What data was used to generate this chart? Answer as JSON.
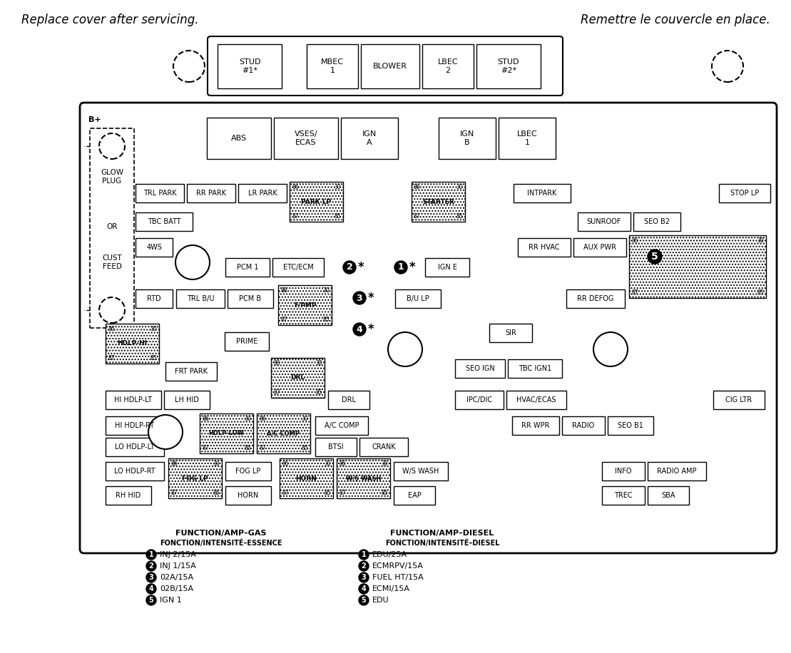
{
  "title_left": "Replace cover after servicing.",
  "title_right": "Remettre le couvercle en place.",
  "bg_color": "#ffffff",
  "legend_gas_title": "FUNCTION/AMP–GAS",
  "legend_gas_subtitle": "FONCTION/INTENSITÉ–ESSENCE",
  "legend_diesel_title": "FUNCTION/AMP–DIESEL",
  "legend_diesel_subtitle": "FONCTION/INTENSITÉ–DIESEL",
  "legend_gas_items": [
    {
      "num": "1",
      "text": "INJ 2/15A"
    },
    {
      "num": "2",
      "text": "INJ 1/15A"
    },
    {
      "num": "3",
      "text": "02A/15A"
    },
    {
      "num": "4",
      "text": "02B/15A"
    },
    {
      "num": "5",
      "text": "IGN 1"
    }
  ],
  "legend_diesel_items": [
    {
      "num": "1",
      "text": "EDU/25A"
    },
    {
      "num": "2",
      "text": "ECMRPV/15A"
    },
    {
      "num": "3",
      "text": "FUEL HT/15A"
    },
    {
      "num": "4",
      "text": "ECMI/15A"
    },
    {
      "num": "5",
      "text": "EDU"
    }
  ]
}
